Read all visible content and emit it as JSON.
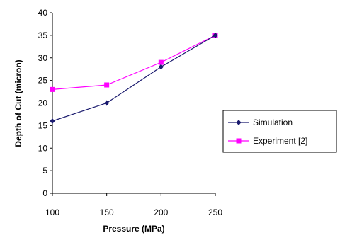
{
  "chart_data": {
    "type": "line",
    "title": "",
    "xlabel": "Pressure (MPa)",
    "ylabel": "Depth of Cut (micron)",
    "x": [
      100,
      150,
      200,
      250
    ],
    "xlim": [
      100,
      250
    ],
    "ylim": [
      0,
      40
    ],
    "yticks": [
      0,
      5,
      10,
      15,
      20,
      25,
      30,
      35,
      40
    ],
    "xticks": [
      100,
      150,
      200,
      250
    ],
    "grid": false,
    "legend_position": "right",
    "series": [
      {
        "name": "Simulation",
        "values": [
          16,
          20,
          28,
          35
        ],
        "color": "#1a1a6e",
        "marker": "diamond"
      },
      {
        "name": "Experiment [2]",
        "values": [
          23,
          24,
          29,
          35
        ],
        "color": "#ff00ff",
        "marker": "square"
      }
    ]
  }
}
